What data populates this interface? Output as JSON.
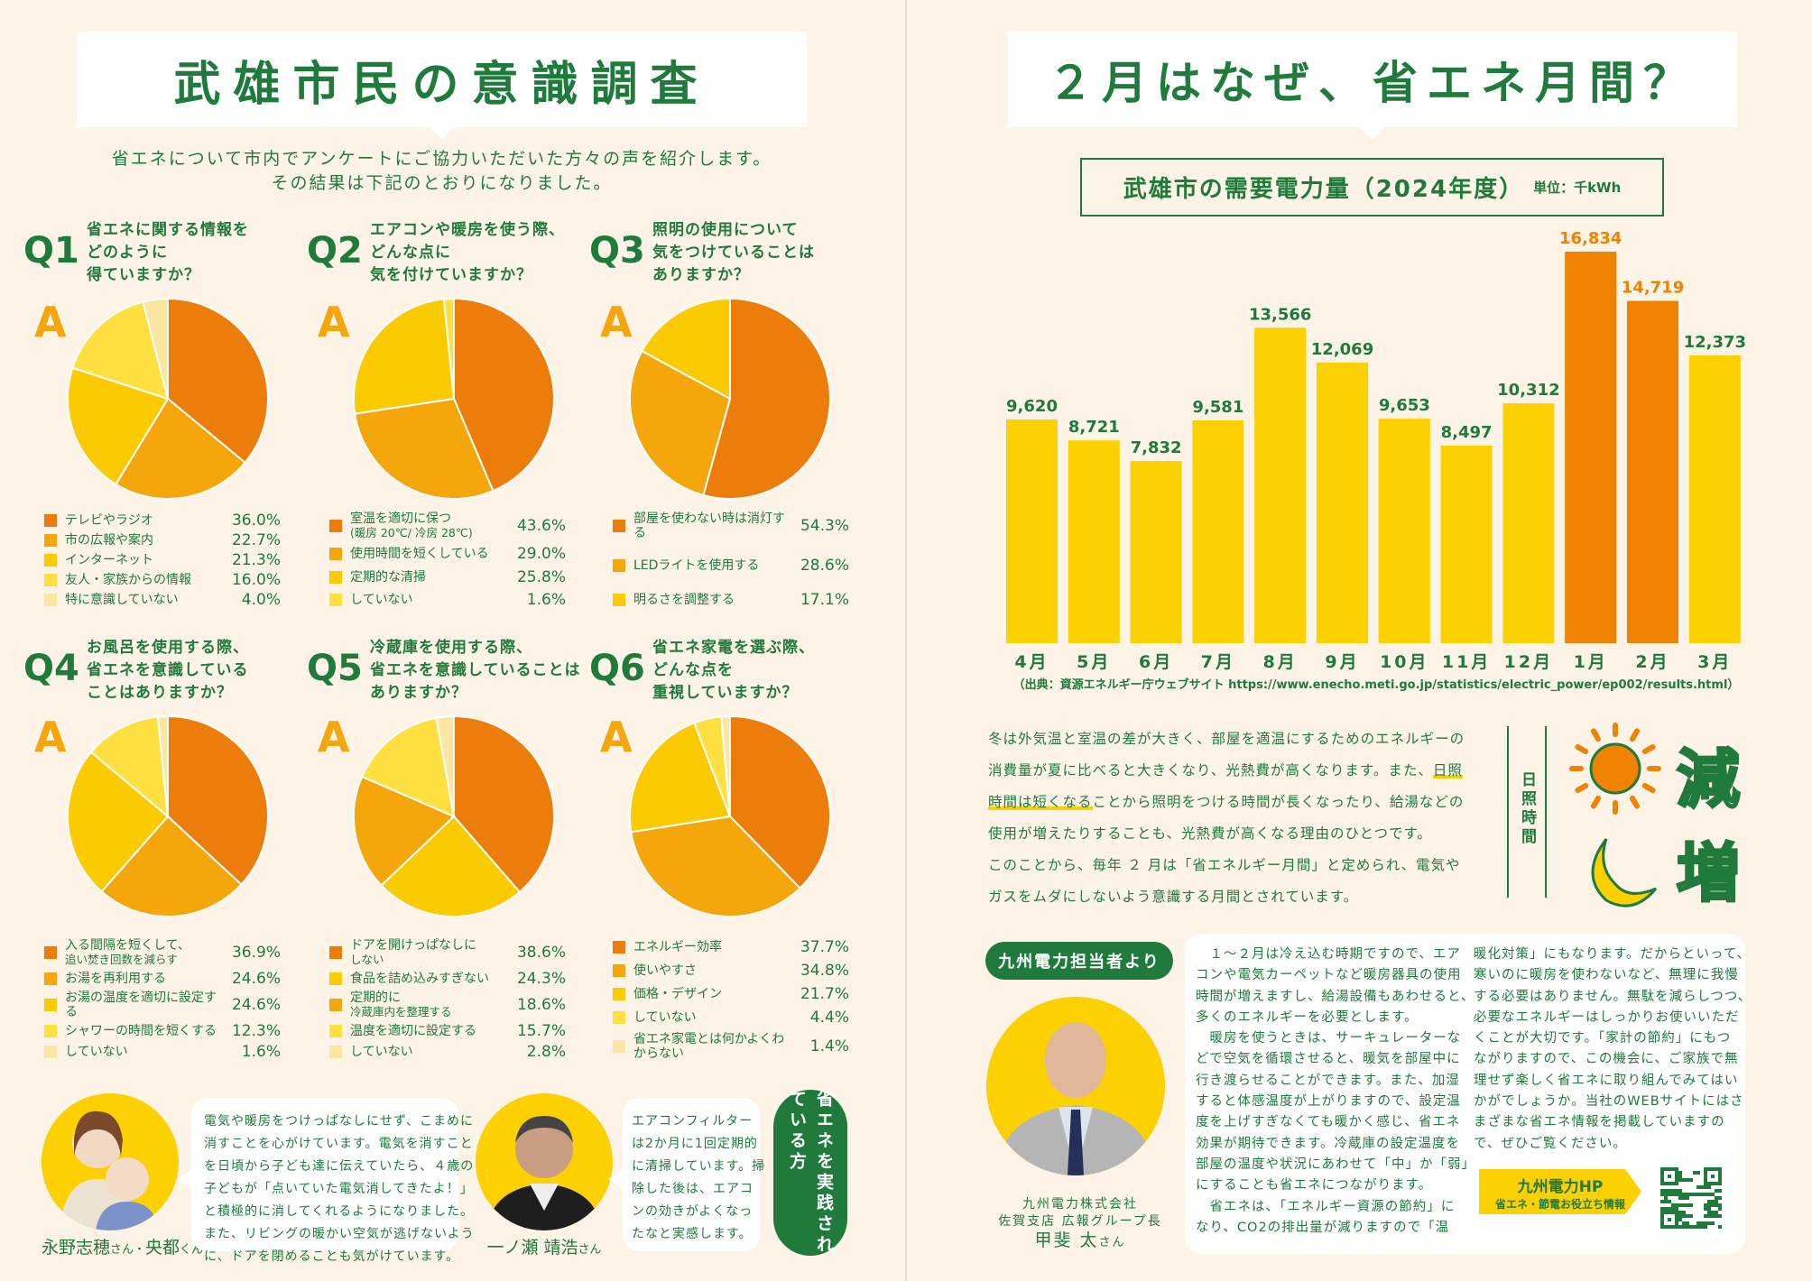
{
  "left": {
    "title": "武雄市民の意識調査",
    "intro": [
      "省エネについて市内でアンケートにご協力いただいた方々の声を紹介します。",
      "その結果は下記のとおりになりました。"
    ],
    "answer_label": "A",
    "colors": {
      "c1": "#ED7D0A",
      "c2": "#F4A60B",
      "c3": "#FBCB00",
      "c4": "#FFE040",
      "c5": "#FCE7A2"
    },
    "questions": [
      {
        "num": "Q1",
        "lines": [
          "省エネに関する情報を",
          "どのように",
          "得ていますか？"
        ],
        "items": [
          {
            "label": "テレビやラジオ",
            "value": 36.0,
            "text": "36.0%",
            "color": "c1"
          },
          {
            "label": "市の広報や案内",
            "value": 22.7,
            "text": "22.7%",
            "color": "c2"
          },
          {
            "label": "インターネット",
            "value": 21.3,
            "text": "21.3%",
            "color": "c3"
          },
          {
            "label": "友人・家族からの情報",
            "value": 16.0,
            "text": "16.0%",
            "color": "c4"
          },
          {
            "label": "特に意識していない",
            "value": 4.0,
            "text": "4.0%",
            "color": "c5"
          }
        ]
      },
      {
        "num": "Q2",
        "lines": [
          "エアコンや暖房を使う際、",
          "どんな点に",
          "気を付けていますか？"
        ],
        "items": [
          {
            "label": "室温を適切に保つ",
            "sub": "(暖房 20℃/ 冷房 28℃)",
            "value": 43.6,
            "text": "43.6%",
            "color": "c1"
          },
          {
            "label": "使用時間を短くしている",
            "value": 29.0,
            "text": "29.0%",
            "color": "c2"
          },
          {
            "label": "定期的な清掃",
            "value": 25.8,
            "text": "25.8%",
            "color": "c3"
          },
          {
            "label": "していない",
            "value": 1.6,
            "text": "1.6%",
            "color": "c4"
          }
        ]
      },
      {
        "num": "Q3",
        "lines": [
          "照明の使用について",
          "気をつけていることは",
          "ありますか？"
        ],
        "items": [
          {
            "label": "部屋を使わない時は消灯する",
            "value": 54.3,
            "text": "54.3%",
            "color": "c1"
          },
          {
            "label": "LEDライトを使用する",
            "value": 28.6,
            "text": "28.6%",
            "color": "c2"
          },
          {
            "label": "明るさを調整する",
            "value": 17.1,
            "text": "17.1%",
            "color": "c3"
          }
        ]
      },
      {
        "num": "Q4",
        "lines": [
          "お風呂を使用する際、",
          "省エネを意識している",
          "ことはありますか？"
        ],
        "items": [
          {
            "label": "入る間隔を短くして、",
            "sub": "追い焚き回数を減らす",
            "value": 36.9,
            "text": "36.9%",
            "color": "c1"
          },
          {
            "label": "お湯を再利用する",
            "value": 24.6,
            "text": "24.6%",
            "color": "c2"
          },
          {
            "label": "お湯の温度を適切に設定する",
            "value": 24.6,
            "text": "24.6%",
            "color": "c3"
          },
          {
            "label": "シャワーの時間を短くする",
            "value": 12.3,
            "text": "12.3%",
            "color": "c4"
          },
          {
            "label": "していない",
            "value": 1.6,
            "text": "1.6%",
            "color": "c5"
          }
        ]
      },
      {
        "num": "Q5",
        "lines": [
          "冷蔵庫を使用する際、",
          "省エネを意識していることは",
          "ありますか？"
        ],
        "items": [
          {
            "label": "ドアを開けっぱなしに",
            "sub": "しない",
            "value": 38.6,
            "text": "38.6%",
            "color": "c1"
          },
          {
            "label": "食品を詰め込みすぎない",
            "value": 24.3,
            "text": "24.3%",
            "color": "c3"
          },
          {
            "label": "定期的に",
            "sub": "冷蔵庫内を整理する",
            "value": 18.6,
            "text": "18.6%",
            "color": "c2"
          },
          {
            "label": "温度を適切に設定する",
            "value": 15.7,
            "text": "15.7%",
            "color": "c4"
          },
          {
            "label": "していない",
            "value": 2.8,
            "text": "2.8%",
            "color": "c5"
          }
        ]
      },
      {
        "num": "Q6",
        "lines": [
          "省エネ家電を選ぶ際、",
          "どんな点を",
          "重視していますか？"
        ],
        "items": [
          {
            "label": "エネルギー効率",
            "value": 37.7,
            "text": "37.7%",
            "color": "c1"
          },
          {
            "label": "使いやすさ",
            "value": 34.8,
            "text": "34.8%",
            "color": "c2"
          },
          {
            "label": "価格・デザイン",
            "value": 21.7,
            "text": "21.7%",
            "color": "c3"
          },
          {
            "label": "していない",
            "value": 4.4,
            "text": "4.4%",
            "color": "c4"
          },
          {
            "label": "省エネ家電とは何かよくわからない",
            "value": 1.4,
            "text": "1.4%",
            "color": "c5"
          }
        ]
      }
    ],
    "testimonials": [
      {
        "name": "永野志穂",
        "honor1": "さん・",
        "name2": "央都",
        "honor2": "くん",
        "lines": [
          "電気や暖房をつけっぱなしにせず、こまめに",
          "消すことを心がけています。電気を消すこと",
          "を日頃から子ども達に伝えていたら、４歳の",
          "子どもが「点いていた電気消してきたよ！」",
          "と積極的に消してくれるようになりました。",
          "また、リビングの暖かい空気が逃げないよう",
          "に、ドアを閉めることも気がけています。"
        ]
      },
      {
        "name": "一ノ瀬 靖浩",
        "honor1": "さん",
        "lines": [
          "エアコンフィルター",
          "は2か月に1回定期的",
          "に清掃しています。掃",
          "除した後は、エアコ",
          "ンの効きがよくなっ",
          "たなと実感します。"
        ]
      }
    ],
    "practitioners_label": "省エネを実践されている方"
  },
  "right": {
    "title": "２月はなぜ、省エネ月間？",
    "chart_title": "武雄市の需要電力量（2024年度）",
    "unit": "単位：千kWh",
    "source": "（出典：資源エネルギー庁ウェブサイト https://www.enecho.meti.go.jp/statistics/electric_power/ep002/results.html）",
    "paragraph": {
      "l1": "冬は外気温と室温の差が大きく、部屋を適温にするためのエネルギーの",
      "l2a": "消費量が夏に比べると大きくなり、光熱費が高くなります。また、",
      "l2b": "日照",
      "l3a": "時間は短くなる",
      "l3b": "ことから照明をつける時間が長くなったり、給湯などの",
      "l4": "使用が増えたりすることも、光熱費が高くなる理由のひとつです。",
      "l5": "このことから、毎年 ２ 月は「省エネルギー月間」と定められ、電気や",
      "l6": "ガスをムダにしないよう意識する月間とされています。"
    },
    "daylight_label": "日照時間",
    "decrease": "減",
    "increase": "増",
    "staff_label": "九州電力担当者より",
    "staff": {
      "company": "九州電力株式会社",
      "dept": "佐賀支店 広報グループ長",
      "name": "甲斐 太",
      "honor": "さん"
    },
    "message_col1": [
      "　１～２月は冷え込む時期ですので、エア",
      "コンや電気カーペットなど暖房器具の使用",
      "時間が増えますし、給湯設備もあわせると、",
      "多くのエネルギーを必要とします。",
      "　暖房を使うときは、サーキュレーターな",
      "どで空気を循環させると、暖気を部屋中に",
      "行き渡らせることができます。また、加湿",
      "すると体感温度が上がりますので、設定温",
      "度を上げすぎなくても暖かく感じ、省エネ",
      "効果が期待できます。冷蔵庫の設定温度を",
      "部屋の温度や状況にあわせて「中」か「弱」",
      "にすることも省エネにつながります。",
      "　省エネは、「エネルギー資源の節約」に",
      "なり、CO2の排出量が減りますので「温"
    ],
    "message_col2": [
      "暖化対策」にもなります。だからといって、",
      "寒いのに暖房を使わないなど、無理に我慢",
      "する必要はありません。無駄を減らしつつ、",
      "必要なエネルギーはしっかりお使いいただ",
      "くことが大切です。「家計の節約」にもつ",
      "ながりますので、この機会に、ご家族で無",
      "理せず楽しく省エネに取り組んでみてはい",
      "かがでしょうか。当社のWEBサイトにはさ",
      "まざまな省エネ情報を掲載していますの",
      "で、ぜひご覧ください。"
    ],
    "hp_title": "九州電力HP",
    "hp_sub": "省エネ・節電お役立ち情報"
  },
  "chart_data": {
    "type": "bar",
    "title": "武雄市の需要電力量（2024年度）",
    "ylabel": "単位：千kWh",
    "categories": [
      "4月",
      "5月",
      "6月",
      "7月",
      "8月",
      "9月",
      "10月",
      "11月",
      "12月",
      "1月",
      "2月",
      "3月"
    ],
    "values": [
      9620,
      8721,
      7832,
      9581,
      13566,
      12069,
      9653,
      8497,
      10312,
      16834,
      14719,
      12373
    ],
    "labels": [
      "9,620",
      "8,721",
      "7,832",
      "9,581",
      "13,566",
      "12,069",
      "9,653",
      "8,497",
      "10,312",
      "16,834",
      "14,719",
      "12,373"
    ],
    "highlight": [
      "1月",
      "2月"
    ],
    "colors": {
      "normal": "#FDD000",
      "highlight": "#EF8200"
    },
    "ylim": [
      0,
      16834
    ]
  }
}
